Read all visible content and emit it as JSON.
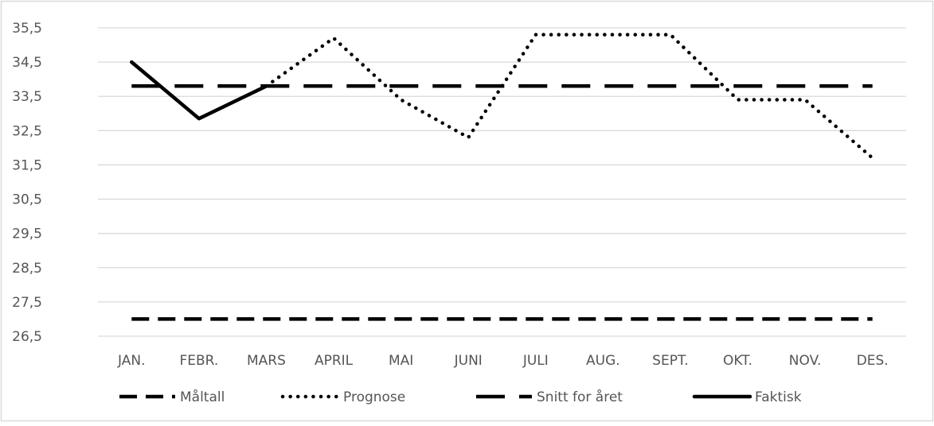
{
  "chart_data": {
    "type": "line",
    "title": "",
    "xlabel": "",
    "ylabel": "",
    "categories": [
      "JAN.",
      "FEBR.",
      "MARS",
      "APRIL",
      "MAI",
      "JUNI",
      "JULI",
      "AUG.",
      "SEPT.",
      "OKT.",
      "NOV.",
      "DES."
    ],
    "y_ticks": [
      "26,5",
      "27,5",
      "28,5",
      "29,5",
      "30,5",
      "31,5",
      "32,5",
      "33,5",
      "34,5",
      "35,5"
    ],
    "ylim": [
      26.5,
      35.5
    ],
    "grid": true,
    "legend_position": "bottom",
    "series": [
      {
        "name": "Måltall",
        "style": "short-dash",
        "color": "#000000",
        "values": [
          27.0,
          27.0,
          27.0,
          27.0,
          27.0,
          27.0,
          27.0,
          27.0,
          27.0,
          27.0,
          27.0,
          27.0
        ]
      },
      {
        "name": "Prognose",
        "style": "dotted",
        "color": "#000000",
        "values": [
          null,
          null,
          33.8,
          35.2,
          33.4,
          32.3,
          35.3,
          35.3,
          35.3,
          33.4,
          33.4,
          31.7
        ]
      },
      {
        "name": "Snitt for året",
        "style": "long-dash",
        "color": "#000000",
        "values": [
          33.8,
          33.8,
          33.8,
          33.8,
          33.8,
          33.8,
          33.8,
          33.8,
          33.8,
          33.8,
          33.8,
          33.8
        ]
      },
      {
        "name": "Faktisk",
        "style": "solid",
        "color": "#000000",
        "values": [
          34.5,
          32.85,
          33.8,
          null,
          null,
          null,
          null,
          null,
          null,
          null,
          null,
          null
        ]
      }
    ]
  }
}
